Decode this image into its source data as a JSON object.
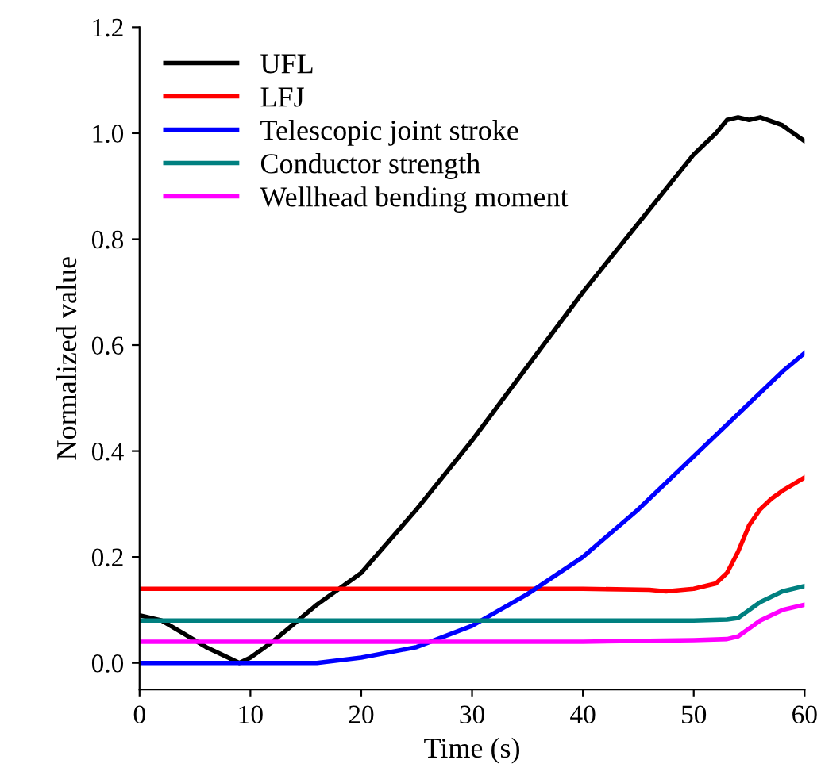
{
  "chart_data": {
    "type": "line",
    "xlabel": "Time (s)",
    "ylabel": "Normalized value",
    "xlim": [
      0,
      60
    ],
    "xticks": [
      0,
      10,
      20,
      30,
      40,
      50,
      60
    ],
    "ylim": [
      -0.05,
      1.2
    ],
    "yticks": [
      {
        "value": 0,
        "label": "0.0"
      },
      0.2,
      0.4,
      0.6,
      0.8,
      {
        "value": 1,
        "label": "1.0"
      },
      1.2
    ],
    "grid": false,
    "legend": "top left",
    "marker": "none",
    "line_style": "solid",
    "series": [
      {
        "name": "UFL",
        "color": "#000000",
        "x": [
          0,
          2,
          4,
          6,
          8,
          9,
          10,
          12,
          14,
          16,
          18,
          20,
          25,
          30,
          35,
          40,
          45,
          50,
          52,
          53,
          54,
          55,
          56,
          58,
          60
        ],
        "values": [
          0.09,
          0.08,
          0.055,
          0.03,
          0.01,
          0.0,
          0.01,
          0.04,
          0.075,
          0.11,
          0.14,
          0.17,
          0.29,
          0.42,
          0.56,
          0.7,
          0.83,
          0.96,
          1.0,
          1.025,
          1.03,
          1.025,
          1.03,
          1.015,
          0.985
        ]
      },
      {
        "name": "LFJ",
        "color": "#ff0000",
        "x": [
          0,
          10,
          20,
          30,
          40,
          46,
          47.5,
          50,
          52,
          53,
          54,
          55,
          56,
          57,
          58,
          60
        ],
        "values": [
          0.14,
          0.14,
          0.14,
          0.14,
          0.14,
          0.138,
          0.135,
          0.14,
          0.15,
          0.17,
          0.21,
          0.26,
          0.29,
          0.31,
          0.325,
          0.35
        ]
      },
      {
        "name": "Telescopic joint stroke",
        "color": "#0000ff",
        "x": [
          0,
          5,
          10,
          16,
          20,
          25,
          30,
          35,
          40,
          45,
          50,
          53,
          55,
          58,
          60
        ],
        "values": [
          0.0,
          0.0,
          0.0,
          0.0,
          0.01,
          0.03,
          0.07,
          0.13,
          0.2,
          0.29,
          0.39,
          0.45,
          0.49,
          0.55,
          0.585
        ]
      },
      {
        "name": "Conductor strength",
        "color": "#008080",
        "x": [
          0,
          10,
          20,
          30,
          40,
          50,
          53,
          54,
          55,
          56,
          58,
          60
        ],
        "values": [
          0.08,
          0.08,
          0.08,
          0.08,
          0.08,
          0.08,
          0.082,
          0.085,
          0.1,
          0.115,
          0.135,
          0.145
        ]
      },
      {
        "name": "Wellhead bending moment",
        "color": "#ff00ff",
        "x": [
          0,
          10,
          20,
          30,
          40,
          50,
          53,
          54,
          55,
          56,
          58,
          60
        ],
        "values": [
          0.04,
          0.04,
          0.04,
          0.04,
          0.04,
          0.043,
          0.045,
          0.05,
          0.065,
          0.08,
          0.1,
          0.11
        ]
      }
    ]
  }
}
